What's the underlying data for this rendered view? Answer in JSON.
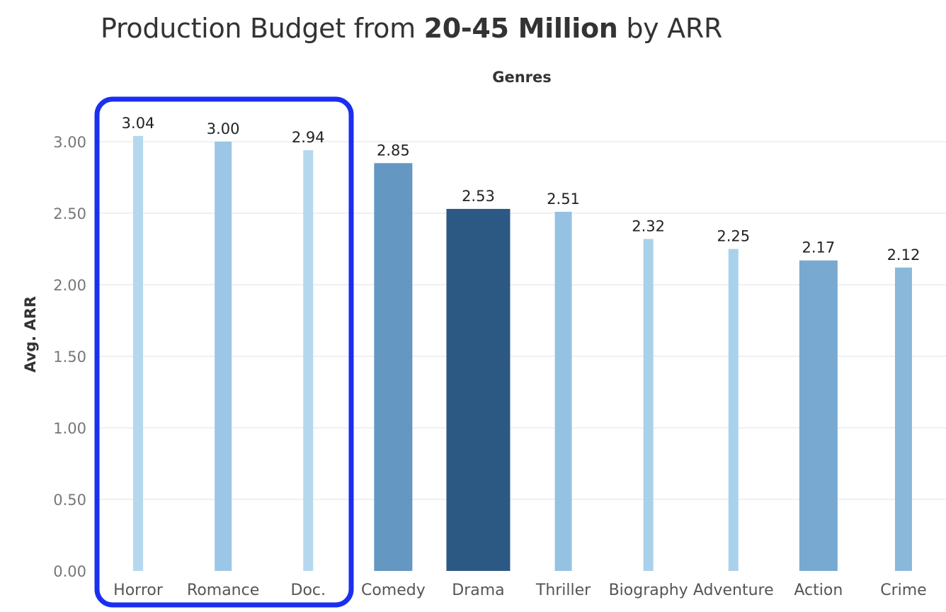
{
  "chart_data": {
    "type": "bar",
    "title_parts": {
      "prefix": "Production Budget from ",
      "emphasis": "20-45 Million",
      "suffix": "  by ARR"
    },
    "xlabel": "Genres",
    "ylabel": "Avg. ARR",
    "categories": [
      "Horror",
      "Romance",
      "Doc.",
      "Comedy",
      "Drama",
      "Thriller",
      "Biography",
      "Adventure",
      "Action",
      "Crime"
    ],
    "values": [
      3.04,
      3.0,
      2.94,
      2.85,
      2.53,
      2.51,
      2.32,
      2.25,
      2.17,
      2.12
    ],
    "data_labels": [
      "3.04",
      "3.00",
      "2.94",
      "2.85",
      "2.53",
      "2.51",
      "2.32",
      "2.25",
      "2.17",
      "2.12"
    ],
    "bar_colors": [
      "#b5d8ee",
      "#9bc6e5",
      "#b5d8ee",
      "#6497c2",
      "#2c5884",
      "#95c2e2",
      "#a9d1eb",
      "#a9d1eb",
      "#78a9d0",
      "#8ab8db"
    ],
    "bar_weights": [
      "thin",
      "medium",
      "thin",
      "wide",
      "xwide",
      "medium",
      "thin",
      "thin",
      "wide",
      "medium"
    ],
    "yticks": [
      0,
      0.5,
      1.0,
      1.5,
      2.0,
      2.5,
      3.0
    ],
    "ytick_labels": [
      "0.00",
      "0.50",
      "1.00",
      "1.50",
      "2.00",
      "2.50",
      "3.00"
    ],
    "ylim": [
      0,
      3.0
    ],
    "grid": true,
    "highlight": {
      "categories": [
        "Horror",
        "Romance",
        "Doc."
      ],
      "color": "#1a2ff0"
    }
  }
}
